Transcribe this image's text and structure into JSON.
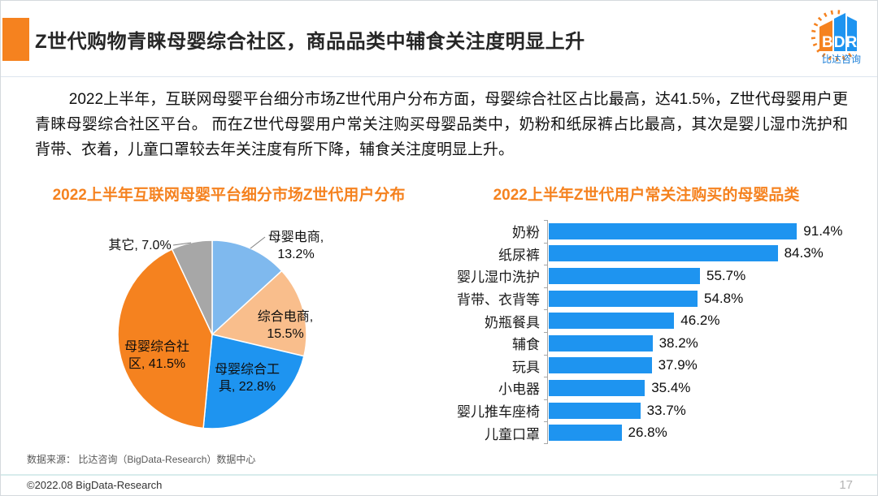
{
  "page": {
    "title": "Z世代购物青睐母婴综合社区，商品品类中辅食关注度明显上升",
    "paragraph": "2022上半年，互联网母婴平台细分市场Z世代用户分布方面，母婴综合社区占比最高，达41.5%，Z世代母婴用户更青睐母婴综合社区平台。 而在Z世代母婴用户常关注购买母婴品类中，奶粉和纸尿裤占比最高，其次是婴儿湿巾洗护和背带、衣着，儿童口罩较去年关注度有所下降，辅食关注度明显上升。",
    "source_note": "数据来源： 比达咨询（BigData-Research）数据中心",
    "copyright": "©2022.08 BigData-Research",
    "page_number": "17"
  },
  "logo": {
    "text": "BDR",
    "subtext": "比达咨询"
  },
  "colors": {
    "accent_orange": "#F5821F",
    "bar_blue": "#1E94F0",
    "light_blue": "#7FB9EE",
    "peach": "#F9BE8C",
    "gray": "#A7A7A7"
  },
  "chart_data": [
    {
      "type": "pie",
      "title": "2022上半年互联网母婴平台细分市场Z世代用户分布",
      "unit": "%",
      "start_angle_deg": 0,
      "direction": "clockwise",
      "legend_position": "none",
      "slices": [
        {
          "label": "母婴电商",
          "value": 13.2,
          "color": "#7FB9EE",
          "label_lines": [
            "母婴电商,",
            "13.2%"
          ],
          "label_placement": "outside"
        },
        {
          "label": "综合电商",
          "value": 15.5,
          "color": "#F9BE8C",
          "label_lines": [
            "综合电商,",
            "15.5%"
          ],
          "label_placement": "outside"
        },
        {
          "label": "母婴综合工具",
          "value": 22.8,
          "color": "#1E94F0",
          "label_lines": [
            "母婴综合工",
            "具, 22.8%"
          ],
          "label_placement": "inside"
        },
        {
          "label": "母婴综合社区",
          "value": 41.5,
          "color": "#F5821F",
          "label_lines": [
            "母婴综合社",
            "区, 41.5%"
          ],
          "label_placement": "inside"
        },
        {
          "label": "其它",
          "value": 7.0,
          "color": "#A7A7A7",
          "label_lines": [
            "其它, 7.0%"
          ],
          "label_placement": "outside"
        }
      ]
    },
    {
      "type": "bar",
      "title": "2022上半年Z世代用户常关注购买的母婴品类",
      "orientation": "horizontal",
      "bar_color": "#1E94F0",
      "xlim": [
        0,
        100
      ],
      "grid": false,
      "categories": [
        "奶粉",
        "纸尿裤",
        "婴儿湿巾洗护",
        "背带、衣背等",
        "奶瓶餐具",
        "辅食",
        "玩具",
        "小电器",
        "婴儿推车座椅",
        "儿童口罩"
      ],
      "values": [
        91.4,
        84.3,
        55.7,
        54.8,
        46.2,
        38.2,
        37.9,
        35.4,
        33.7,
        26.8
      ],
      "value_labels": [
        "91.4%",
        "84.3%",
        "55.7%",
        "54.8%",
        "46.2%",
        "38.2%",
        "37.9%",
        "35.4%",
        "33.7%",
        "26.8%"
      ]
    }
  ]
}
